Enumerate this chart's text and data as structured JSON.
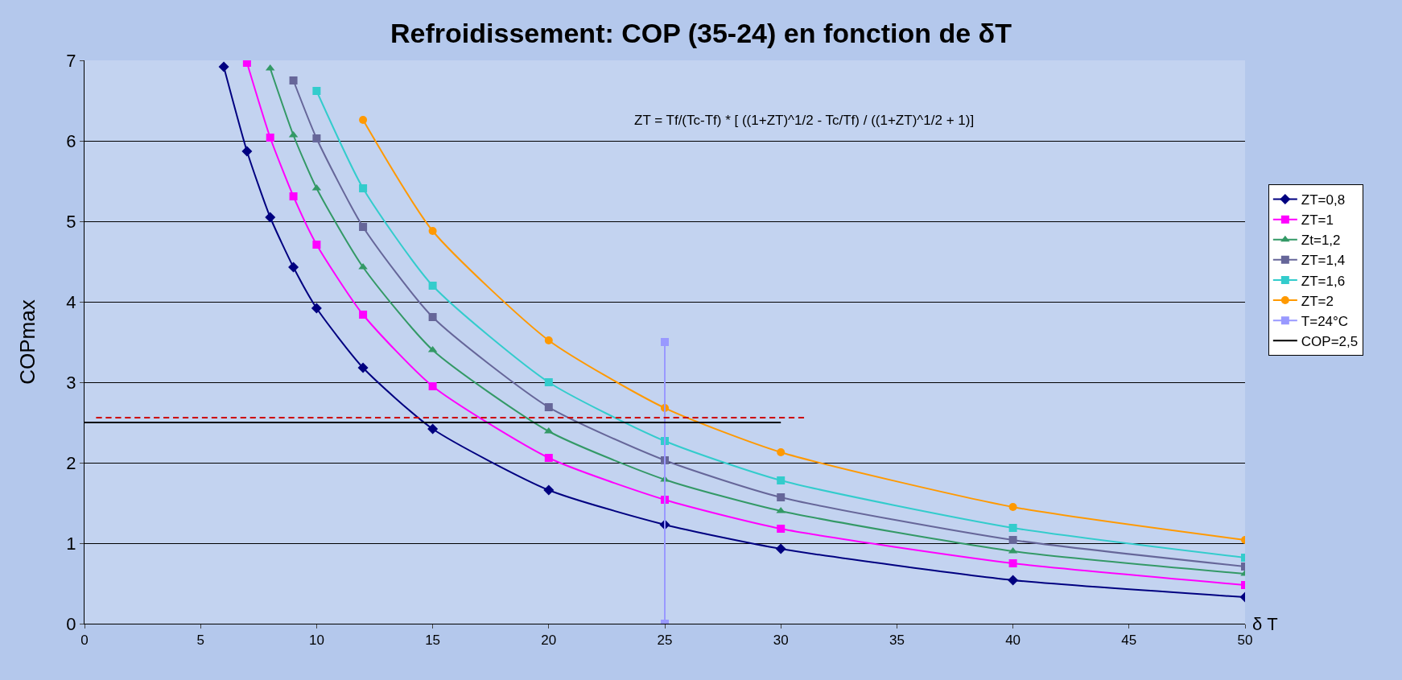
{
  "chart_data": {
    "type": "line",
    "title": "Refroidissement: COP (35-24) en fonction de δT",
    "xlabel": "δ T",
    "ylabel": "COPmax",
    "annotations": [
      "ZT = Tf/(Tc-Tf) * [ ((1+ZT)^1/2 - Tc/Tf) / ((1+ZT)^1/2 + 1)]"
    ],
    "xlim": [
      0,
      50
    ],
    "xticks": [
      0,
      5,
      10,
      15,
      20,
      25,
      30,
      35,
      40,
      45,
      50
    ],
    "ylim": [
      0,
      7
    ],
    "yticks": [
      0,
      1,
      2,
      3,
      4,
      5,
      6,
      7
    ],
    "grid": "y",
    "legend": "right",
    "series": [
      {
        "name": "ZT=0,8",
        "color": "#000080",
        "marker": "diamond",
        "x": [
          6,
          7,
          8,
          9,
          10,
          12,
          15,
          20,
          25,
          30,
          40,
          50
        ],
        "values": [
          6.92,
          5.87,
          5.05,
          4.43,
          3.92,
          3.18,
          2.42,
          1.66,
          1.23,
          0.93,
          0.54,
          0.33
        ]
      },
      {
        "name": "ZT=1",
        "color": "#ff00ff",
        "marker": "square",
        "x": [
          7,
          8,
          9,
          10,
          12,
          15,
          20,
          25,
          30,
          40,
          50
        ],
        "values": [
          6.97,
          6.04,
          5.31,
          4.71,
          3.84,
          2.95,
          2.06,
          1.54,
          1.18,
          0.75,
          0.48
        ]
      },
      {
        "name": "Zt=1,2",
        "color": "#339966",
        "marker": "triangle",
        "x": [
          8,
          9,
          10,
          12,
          15,
          20,
          25,
          30,
          40,
          50
        ],
        "values": [
          6.9,
          6.07,
          5.41,
          4.43,
          3.4,
          2.39,
          1.79,
          1.4,
          0.9,
          0.62
        ]
      },
      {
        "name": "ZT=1,4",
        "color": "#666699",
        "marker": "square",
        "x": [
          9,
          10,
          12,
          15,
          20,
          25,
          30,
          40,
          50
        ],
        "values": [
          6.75,
          6.03,
          4.93,
          3.81,
          2.69,
          2.03,
          1.57,
          1.04,
          0.71
        ]
      },
      {
        "name": "ZT=1,6",
        "color": "#33cccc",
        "marker": "square",
        "x": [
          10,
          12,
          15,
          20,
          25,
          30,
          40,
          50
        ],
        "values": [
          6.62,
          5.41,
          4.2,
          3.0,
          2.27,
          1.78,
          1.19,
          0.82
        ]
      },
      {
        "name": "ZT=2",
        "color": "#ff9900",
        "marker": "circle",
        "x": [
          12,
          15,
          20,
          25,
          30,
          40,
          50
        ],
        "values": [
          6.26,
          4.88,
          3.52,
          2.68,
          2.13,
          1.45,
          1.04
        ]
      },
      {
        "name": "T=24°C",
        "color": "#9999ff",
        "marker": "square",
        "x": [
          25,
          25
        ],
        "values": [
          0,
          3.5
        ]
      },
      {
        "name": "COP=2,5",
        "color": "#000000",
        "marker": "none",
        "x": [
          0,
          30
        ],
        "values": [
          2.5,
          2.5
        ]
      },
      {
        "color": "#cc0000",
        "marker": "none",
        "line_style": "dashed",
        "x": [
          0.5,
          31
        ],
        "values": [
          2.56,
          2.56
        ]
      }
    ]
  }
}
